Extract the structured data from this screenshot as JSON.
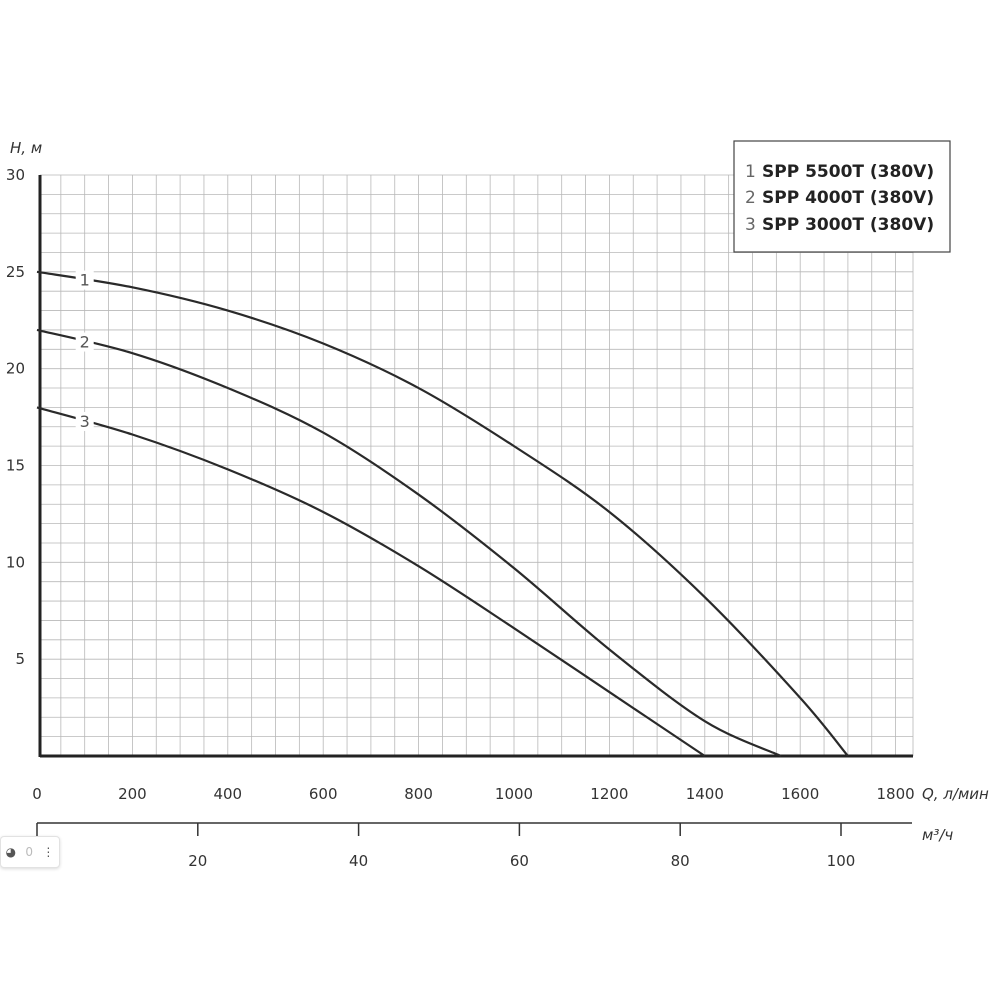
{
  "chart_data": {
    "type": "line",
    "x_label": "Q, л/мин",
    "y_label": "H, м",
    "x_ticks": [
      0,
      200,
      400,
      600,
      800,
      1000,
      1200,
      1400,
      1600,
      1800
    ],
    "y_ticks": [
      5,
      10,
      15,
      20,
      25,
      30
    ],
    "y_zero_label": "0",
    "xlim": [
      0,
      1850
    ],
    "ylim": [
      0,
      30
    ],
    "grid": true,
    "secondary_axis": {
      "label": "м³/ч",
      "ticks": [
        0,
        20,
        40,
        60,
        80,
        100
      ]
    },
    "legend_position": "top-right",
    "series": [
      {
        "name": "SPP 5500T (380V)",
        "label": "1",
        "x": [
          0,
          200,
          400,
          600,
          800,
          1000,
          1200,
          1400,
          1600,
          1700,
          1800
        ],
        "y": [
          25,
          24.2,
          23,
          21.3,
          19,
          16,
          12.6,
          8.2,
          3,
          0,
          0
        ]
      },
      {
        "name": "SPP 4000T (380V)",
        "label": "2",
        "x": [
          0,
          200,
          400,
          600,
          800,
          1000,
          1200,
          1400,
          1560
        ],
        "y": [
          22,
          20.8,
          19,
          16.7,
          13.5,
          9.7,
          5.5,
          1.8,
          0
        ]
      },
      {
        "name": "SPP 3000T (380V)",
        "label": "3",
        "x": [
          0,
          200,
          400,
          600,
          800,
          1000,
          1200,
          1400
        ],
        "y": [
          18,
          16.6,
          14.8,
          12.6,
          9.8,
          6.6,
          3.3,
          0
        ]
      }
    ]
  },
  "legend": {
    "items": [
      {
        "num": "1",
        "text": "SPP 5500T (380V)"
      },
      {
        "num": "2",
        "text": "SPP 4000T (380V)"
      },
      {
        "num": "3",
        "text": "SPP 3000T (380V)"
      }
    ]
  },
  "viewer": {
    "camera_icon": "camera-icon",
    "menu_icon": "more-vertical-icon"
  }
}
